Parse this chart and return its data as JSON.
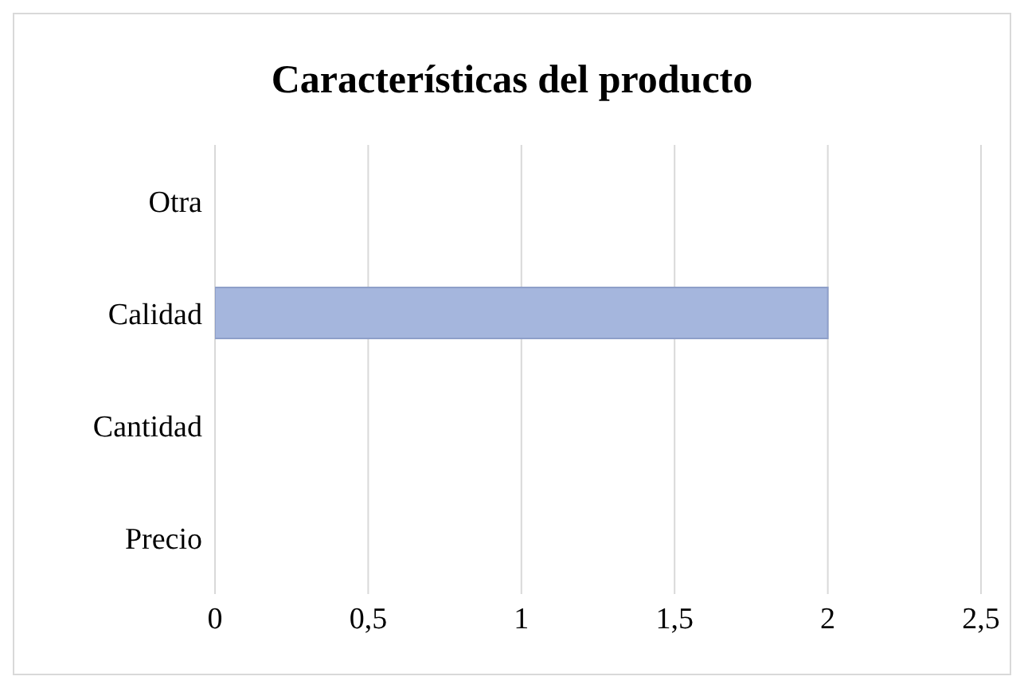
{
  "chart_data": {
    "type": "bar",
    "orientation": "horizontal",
    "title": "Características del producto",
    "categories": [
      "Otra",
      "Calidad",
      "Cantidad",
      "Precio"
    ],
    "values": [
      0,
      2,
      0,
      0
    ],
    "color": "#a5b6dd",
    "xlim": [
      0,
      2.5
    ],
    "xticks": [
      0,
      {
        "value": 0.5,
        "label": "0,5"
      },
      1,
      {
        "value": 1.5,
        "label": "1,5"
      },
      2,
      {
        "value": 2.5,
        "label": "2,5"
      }
    ],
    "grid": "x",
    "legend": false
  }
}
